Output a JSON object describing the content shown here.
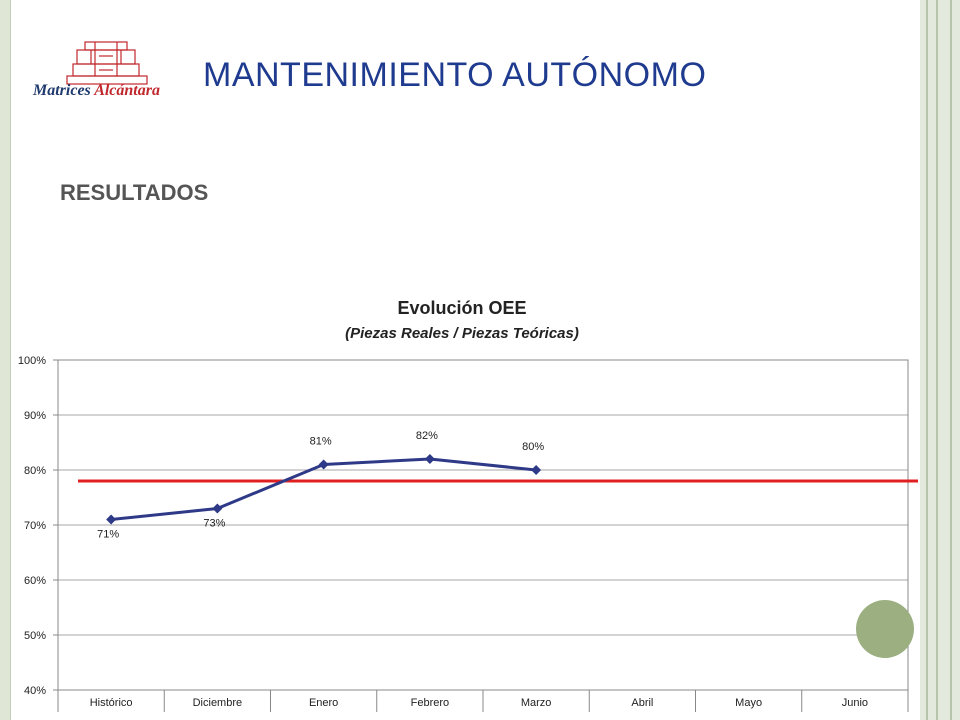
{
  "slide": {
    "title": "MANTENIMIENTO AUTÓNOMO",
    "subtitle": "RESULTADOS",
    "logo": {
      "text_main": "Matrices",
      "text_accent": "Alcántara",
      "color_main": "#1f3a6e",
      "color_accent": "#c0282d"
    }
  },
  "chart_data": {
    "type": "line",
    "title": "Evolución OEE",
    "subtitle": "(Piezas Reales / Piezas Teóricas)",
    "categories": [
      "Histórico",
      "Diciembre",
      "Enero",
      "Febrero",
      "Marzo",
      "Abril",
      "Mayo",
      "Junio"
    ],
    "series": [
      {
        "values": [
          0.71,
          0.73,
          0.81,
          0.82,
          0.8,
          null,
          null,
          null
        ],
        "labels": [
          "71%",
          "73%",
          "81%",
          "82%",
          "80%",
          "",
          "",
          ""
        ],
        "color": "#2e3a87"
      }
    ],
    "reference_line": {
      "value": 0.78,
      "color": "#e02020"
    },
    "ylim": [
      0.4,
      1.0
    ],
    "yticks": [
      0.4,
      0.5,
      0.6,
      0.7,
      0.8,
      0.9,
      1.0
    ],
    "ytick_labels": [
      "40%",
      "50%",
      "60%",
      "70%",
      "80%",
      "90%",
      "100%"
    ],
    "grid": true,
    "legend": "none"
  }
}
